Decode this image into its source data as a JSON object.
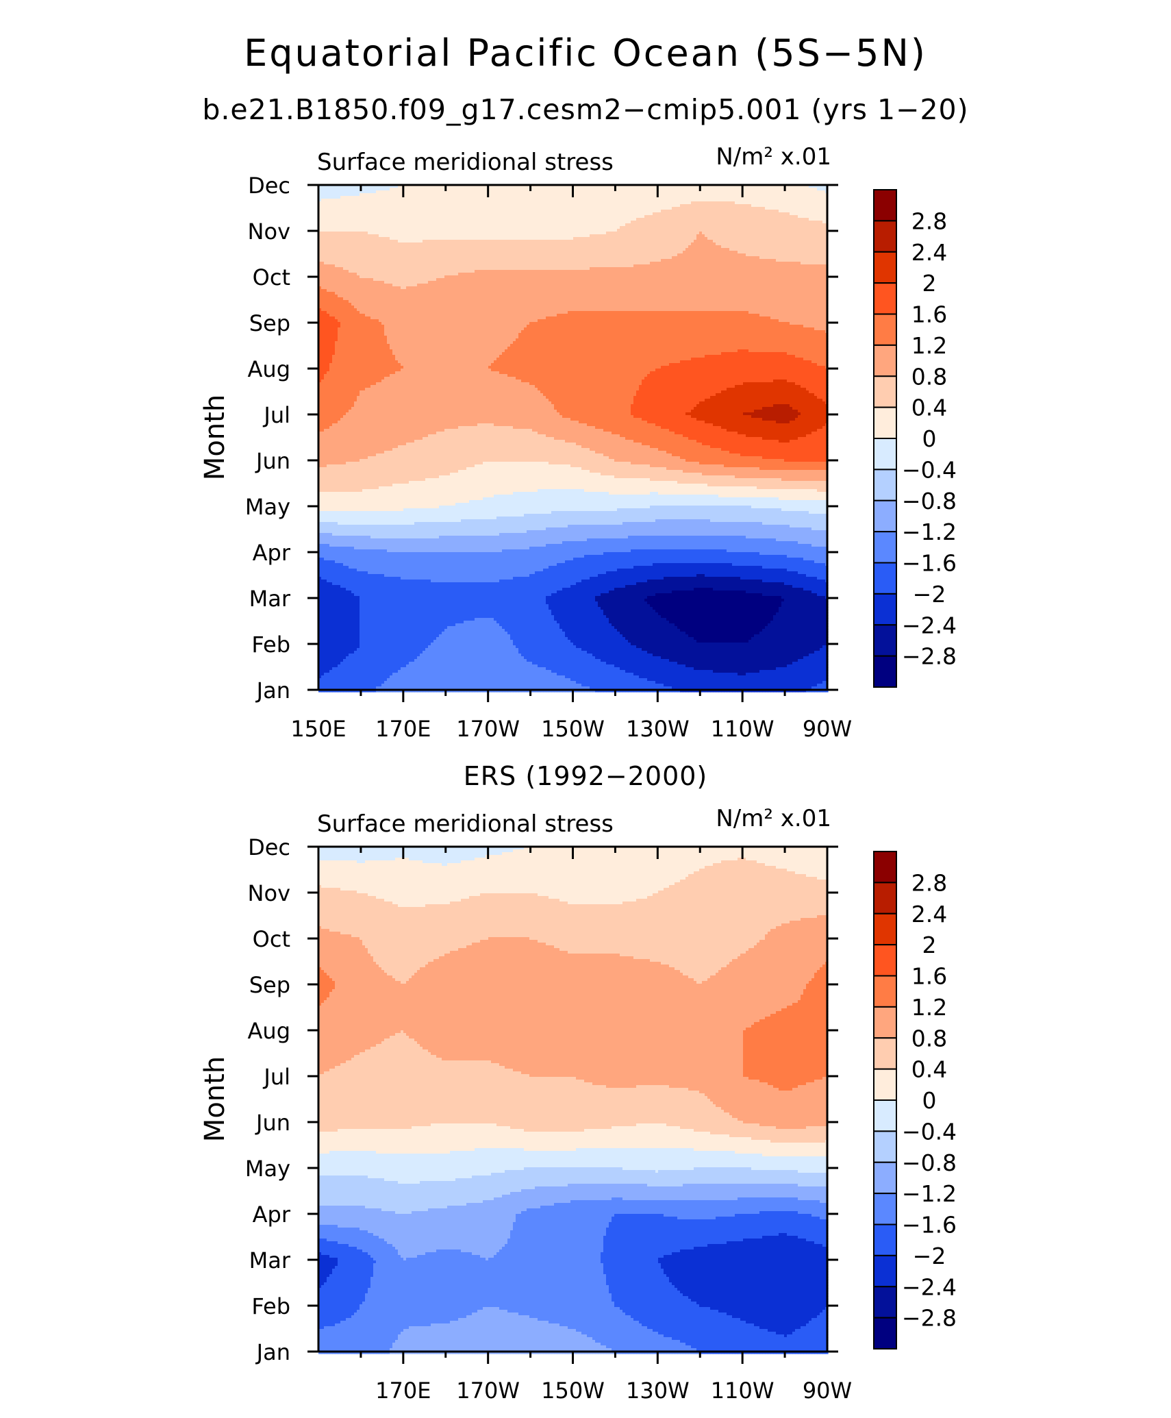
{
  "title": "Equatorial Pacific Ocean (5S−5N)",
  "subtitle": "b.e21.B1850.f09_g17.cesm2−cmip5.001 (yrs 1−20)",
  "colorbar": {
    "labels": [
      "2.8",
      "2.4",
      "2",
      "1.6",
      "1.2",
      "0.8",
      "0.4",
      "0",
      "−0.4",
      "−0.8",
      "−1.2",
      "−1.6",
      "−2",
      "−2.4",
      "−2.8"
    ],
    "colors": [
      "#8b0000",
      "#b81d00",
      "#e03500",
      "#ff5520",
      "#ff7c45",
      "#ffa67e",
      "#ffcdb0",
      "#ffeddc",
      "#d8ebff",
      "#b4d0ff",
      "#8cadff",
      "#5b88ff",
      "#2a5cf6",
      "#0b30d4",
      "#03119a",
      "#000080"
    ]
  },
  "chart_data": [
    {
      "type": "contour",
      "panel": "model",
      "title": "",
      "left_string": "Surface meridional stress",
      "right_string": "N/m² x.01",
      "ylabel": "Month",
      "xlabel": "",
      "y_tick_labels": [
        "Dec",
        "Nov",
        "Oct",
        "Sep",
        "Aug",
        "Jul",
        "Jun",
        "May",
        "Apr",
        "Mar",
        "Feb",
        "Jan"
      ],
      "x_tick_labels": [
        "150E",
        "170E",
        "170W",
        "150W",
        "130W",
        "110W",
        "90W"
      ],
      "x_tick_lon": [
        150,
        170,
        190,
        210,
        230,
        250,
        270
      ],
      "xlim_lon": [
        150,
        270
      ],
      "ylim_month": [
        1,
        12
      ],
      "levels": [
        -2.8,
        -2.4,
        -2,
        -1.6,
        -1.2,
        -0.8,
        -0.4,
        0,
        0.4,
        0.8,
        1.2,
        1.6,
        2,
        2.4,
        2.8
      ],
      "grid_lon": [
        150,
        160,
        170,
        180,
        190,
        200,
        210,
        220,
        230,
        240,
        250,
        260,
        270
      ],
      "grid_month": [
        "Jan",
        "Feb",
        "Mar",
        "Apr",
        "May",
        "Jun",
        "Jul",
        "Aug",
        "Sep",
        "Oct",
        "Nov",
        "Dec"
      ],
      "values": [
        [
          -1.9,
          -1.7,
          -1.4,
          -1.3,
          -1.2,
          -1.3,
          -1.5,
          -1.7,
          -1.9,
          -2.1,
          -2.2,
          -2.1,
          -1.9
        ],
        [
          -2.3,
          -2.0,
          -1.8,
          -1.5,
          -1.3,
          -1.8,
          -2.0,
          -2.3,
          -2.6,
          -2.8,
          -2.8,
          -2.7,
          -2.4
        ],
        [
          -2.4,
          -2.0,
          -1.9,
          -1.8,
          -1.8,
          -1.9,
          -2.2,
          -2.6,
          -2.9,
          -3.1,
          -3.0,
          -2.8,
          -2.4
        ],
        [
          -1.5,
          -1.3,
          -1.2,
          -1.2,
          -1.2,
          -1.3,
          -1.5,
          -1.6,
          -1.7,
          -1.7,
          -1.6,
          -1.5,
          -1.3
        ],
        [
          0.2,
          0.2,
          0.1,
          0.0,
          -0.1,
          -0.2,
          -0.3,
          -0.3,
          -0.4,
          -0.4,
          -0.4,
          -0.3,
          -0.2
        ],
        [
          0.9,
          0.8,
          0.7,
          0.6,
          0.4,
          0.4,
          0.5,
          0.8,
          1.0,
          1.3,
          1.5,
          1.6,
          1.6
        ],
        [
          1.4,
          1.1,
          1.0,
          0.9,
          0.9,
          1.0,
          1.3,
          1.5,
          1.8,
          2.1,
          2.4,
          2.6,
          2.1
        ],
        [
          1.7,
          1.3,
          1.2,
          1.2,
          1.2,
          1.3,
          1.4,
          1.5,
          1.6,
          1.7,
          1.8,
          1.8,
          1.6
        ],
        [
          1.9,
          1.3,
          1.1,
          1.1,
          1.1,
          1.2,
          1.3,
          1.3,
          1.3,
          1.3,
          1.3,
          1.2,
          1.1
        ],
        [
          1.0,
          0.8,
          0.7,
          0.8,
          0.9,
          0.9,
          0.9,
          0.9,
          0.9,
          0.9,
          0.9,
          0.9,
          0.9
        ],
        [
          0.4,
          0.4,
          0.3,
          0.3,
          0.3,
          0.3,
          0.3,
          0.4,
          0.6,
          0.8,
          0.7,
          0.6,
          0.5
        ],
        [
          -0.2,
          -0.1,
          0.0,
          0.1,
          0.1,
          0.1,
          0.1,
          0.1,
          0.1,
          0.2,
          0.2,
          0.1,
          -0.1
        ]
      ]
    },
    {
      "type": "contour",
      "panel": "observations",
      "title": "ERS (1992−2000)",
      "left_string": "Surface meridional stress",
      "right_string": "N/m² x.01",
      "ylabel": "Month",
      "xlabel": "",
      "y_tick_labels": [
        "Dec",
        "Nov",
        "Oct",
        "Sep",
        "Aug",
        "Jul",
        "Jun",
        "May",
        "Apr",
        "Mar",
        "Feb",
        "Jan"
      ],
      "x_tick_labels": [
        "170E",
        "170W",
        "150W",
        "130W",
        "110W",
        "90W"
      ],
      "x_tick_lon": [
        170,
        190,
        210,
        230,
        250,
        270
      ],
      "xlim_lon": [
        150,
        270
      ],
      "ylim_month": [
        1,
        12
      ],
      "levels": [
        -2.8,
        -2.4,
        -2,
        -1.6,
        -1.2,
        -0.8,
        -0.4,
        0,
        0.4,
        0.8,
        1.2,
        1.6,
        2,
        2.4,
        2.8
      ],
      "grid_lon": [
        150,
        160,
        170,
        180,
        190,
        200,
        210,
        220,
        230,
        240,
        250,
        260,
        270
      ],
      "grid_month": [
        "Jan",
        "Feb",
        "Mar",
        "Apr",
        "May",
        "Jun",
        "Jul",
        "Aug",
        "Sep",
        "Oct",
        "Nov",
        "Dec"
      ],
      "values": [
        [
          -1.3,
          -1.4,
          -1.1,
          -0.9,
          -0.8,
          -0.9,
          -1.0,
          -1.2,
          -1.4,
          -1.6,
          -1.8,
          -1.9,
          -1.8
        ],
        [
          -1.9,
          -1.6,
          -1.3,
          -1.4,
          -1.2,
          -1.3,
          -1.4,
          -1.6,
          -1.9,
          -2.0,
          -2.1,
          -2.2,
          -2.0
        ],
        [
          -2.2,
          -1.8,
          -1.2,
          -1.3,
          -1.2,
          -1.3,
          -1.4,
          -1.7,
          -2.0,
          -2.2,
          -2.3,
          -2.4,
          -2.2
        ],
        [
          -0.9,
          -0.9,
          -0.8,
          -0.9,
          -1.0,
          -1.3,
          -1.5,
          -1.6,
          -1.6,
          -1.5,
          -1.6,
          -1.7,
          -1.5
        ],
        [
          -0.3,
          -0.3,
          -0.2,
          -0.2,
          -0.3,
          -0.4,
          -0.4,
          -0.4,
          -0.3,
          -0.4,
          -0.4,
          -0.3,
          -0.3
        ],
        [
          0.6,
          0.5,
          0.5,
          0.4,
          0.4,
          0.6,
          0.6,
          0.5,
          0.4,
          0.6,
          0.8,
          1.0,
          0.9
        ],
        [
          0.8,
          0.7,
          0.6,
          0.7,
          0.7,
          0.8,
          0.8,
          0.9,
          0.9,
          0.9,
          1.2,
          1.3,
          1.2
        ],
        [
          1.0,
          0.9,
          0.8,
          1.0,
          1.0,
          1.1,
          1.0,
          1.0,
          1.0,
          0.9,
          1.2,
          1.3,
          1.2
        ],
        [
          1.4,
          0.9,
          0.8,
          1.0,
          1.1,
          1.1,
          1.0,
          1.0,
          1.0,
          0.8,
          1.0,
          1.1,
          1.3
        ],
        [
          0.9,
          0.8,
          0.6,
          0.7,
          0.8,
          0.8,
          0.7,
          0.7,
          0.6,
          0.5,
          0.7,
          0.9,
          1.1
        ],
        [
          0.5,
          0.4,
          0.3,
          0.3,
          0.4,
          0.4,
          0.3,
          0.3,
          0.4,
          0.5,
          0.7,
          0.6,
          0.5
        ],
        [
          -0.2,
          -0.2,
          -0.1,
          -0.2,
          -0.1,
          0.0,
          0.0,
          0.1,
          0.2,
          0.3,
          0.3,
          0.2,
          0.1
        ]
      ]
    }
  ]
}
